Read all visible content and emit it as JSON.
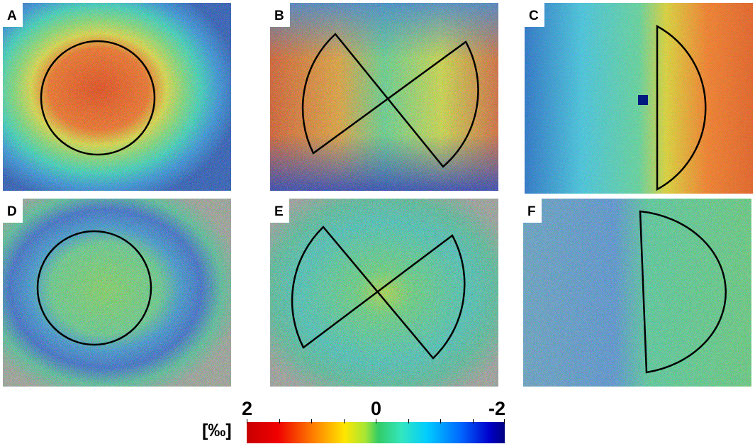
{
  "panels": [
    {
      "label": "A",
      "shape": "circle"
    },
    {
      "label": "B",
      "shape": "bowtie"
    },
    {
      "label": "C",
      "shape": "half-disk"
    },
    {
      "label": "D",
      "shape": "circle"
    },
    {
      "label": "E",
      "shape": "bowtie"
    },
    {
      "label": "F",
      "shape": "half-disk"
    }
  ],
  "colorbar": {
    "unit": "[‰]",
    "max_label": "2",
    "mid_label": "0",
    "min_label": "-2",
    "colors": [
      "#c80000",
      "#ff8000",
      "#ffe600",
      "#33cc66",
      "#00ccff",
      "#0066ff",
      "#000080"
    ]
  }
}
